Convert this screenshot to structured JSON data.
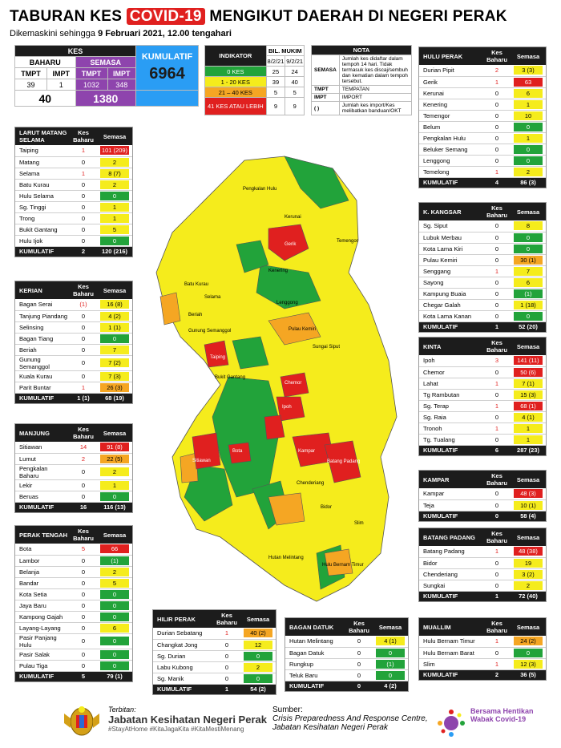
{
  "header": {
    "title_pre": "TABURAN KES",
    "title_covid": "COVID-19",
    "title_post": "MENGIKUT DAERAH DI NEGERI PERAK",
    "subtitle_pre": "Dikemaskini sehingga",
    "subtitle_date": "9 Februari 2021, 12.00 tengahari"
  },
  "colors": {
    "green": "#22a33a",
    "yellow": "#f5ec1c",
    "orange": "#f5a623",
    "red": "#e0201f",
    "purple": "#8e44ad",
    "blue": "#2a9df4"
  },
  "kes": {
    "title": "KES",
    "baharu": "BAHARU",
    "semasa": "SEMASA",
    "kumulatif_label": "KUMULATIF",
    "tmpt": "TMPT",
    "impt": "IMPT",
    "baharu_tmpt": "39",
    "baharu_impt": "1",
    "baharu_total": "40",
    "semasa_tmpt": "1032",
    "semasa_impt": "348",
    "semasa_total": "1380",
    "kumulatif": "6964"
  },
  "indicator": {
    "title": "INDIKATOR",
    "bil_mukim": "BIL. MUKIM",
    "d1": "8/2/21",
    "d2": "9/2/21",
    "rows": [
      {
        "label": "0 KES",
        "v1": "25",
        "v2": "24"
      },
      {
        "label": "1 - 20 KES",
        "v1": "39",
        "v2": "40"
      },
      {
        "label": "21 – 40 KES",
        "v1": "5",
        "v2": "5"
      },
      {
        "label": "41 KES ATAU LEBIH",
        "v1": "9",
        "v2": "9"
      }
    ]
  },
  "nota": {
    "title": "NOTA",
    "rows": [
      {
        "k": "SEMASA",
        "v": "Jumlah kes didaftar dalam tempoh 14 hari. Tidak termasuk kes discaj/sembuh dan kematian dalam tempoh tersebut."
      },
      {
        "k": "TMPT",
        "v": "TEMPATAN"
      },
      {
        "k": "IMPT",
        "v": "IMPORT"
      },
      {
        "k": "( )",
        "v": "Jumlah kes import/Kes melibatkan banduan/OKT"
      }
    ]
  },
  "col": {
    "kes_baharu": "Kes Baharu",
    "semasa": "Semasa",
    "kumulatif": "KUMULATIF"
  },
  "districts": {
    "larut": {
      "name": "LARUT MATANG SELAMA",
      "rows": [
        {
          "n": "Taiping",
          "b": "1",
          "s": "101 (209)",
          "c": "r",
          "br": true
        },
        {
          "n": "Matang",
          "b": "0",
          "s": "2",
          "c": "y"
        },
        {
          "n": "Selama",
          "b": "1",
          "s": "8 (7)",
          "c": "y",
          "br": true
        },
        {
          "n": "Batu Kurau",
          "b": "0",
          "s": "2",
          "c": "y"
        },
        {
          "n": "Hulu Selama",
          "b": "0",
          "s": "0",
          "c": "g"
        },
        {
          "n": "Sg. Tinggi",
          "b": "0",
          "s": "1",
          "c": "y"
        },
        {
          "n": "Trong",
          "b": "0",
          "s": "1",
          "c": "y"
        },
        {
          "n": "Bukit Gantang",
          "b": "0",
          "s": "5",
          "c": "y"
        },
        {
          "n": "Hulu Ijok",
          "b": "0",
          "s": "0",
          "c": "g"
        }
      ],
      "tb": "2",
      "ts": "120 (216)"
    },
    "kerian": {
      "name": "KERIAN",
      "rows": [
        {
          "n": "Bagan Serai",
          "b": "(1)",
          "s": "16 (8)",
          "c": "y",
          "br": true
        },
        {
          "n": "Tanjung Piandang",
          "b": "0",
          "s": "4 (2)",
          "c": "y"
        },
        {
          "n": "Selinsing",
          "b": "0",
          "s": "1 (1)",
          "c": "y"
        },
        {
          "n": "Bagan Tiang",
          "b": "0",
          "s": "0",
          "c": "g"
        },
        {
          "n": "Beriah",
          "b": "0",
          "s": "7",
          "c": "y"
        },
        {
          "n": "Gunung Semanggol",
          "b": "0",
          "s": "7 (2)",
          "c": "y"
        },
        {
          "n": "Kuala Kurau",
          "b": "0",
          "s": "7 (3)",
          "c": "y"
        },
        {
          "n": "Parit Buntar",
          "b": "1",
          "s": "26 (3)",
          "c": "o",
          "br": true
        }
      ],
      "tb": "1 (1)",
      "ts": "68 (19)"
    },
    "manjung": {
      "name": "MANJUNG",
      "rows": [
        {
          "n": "Sitiawan",
          "b": "14",
          "s": "91 (8)",
          "c": "r",
          "br": true
        },
        {
          "n": "Lumut",
          "b": "2",
          "s": "22 (5)",
          "c": "o",
          "br": true
        },
        {
          "n": "Pengkalan Baharu",
          "b": "0",
          "s": "2",
          "c": "y"
        },
        {
          "n": "Lekir",
          "b": "0",
          "s": "1",
          "c": "y"
        },
        {
          "n": "Beruas",
          "b": "0",
          "s": "0",
          "c": "g"
        }
      ],
      "tb": "16",
      "ts": "116 (13)"
    },
    "perak_tengah": {
      "name": "PERAK TENGAH",
      "rows": [
        {
          "n": "Bota",
          "b": "5",
          "s": "66",
          "c": "r",
          "br": true
        },
        {
          "n": "Lambor",
          "b": "0",
          "s": "(1)",
          "c": "g"
        },
        {
          "n": "Belanja",
          "b": "0",
          "s": "2",
          "c": "y"
        },
        {
          "n": "Bandar",
          "b": "0",
          "s": "5",
          "c": "y"
        },
        {
          "n": "Kota Setia",
          "b": "0",
          "s": "0",
          "c": "g"
        },
        {
          "n": "Jaya Baru",
          "b": "0",
          "s": "0",
          "c": "g"
        },
        {
          "n": "Kampong Gajah",
          "b": "0",
          "s": "0",
          "c": "g"
        },
        {
          "n": "Layang-Layang",
          "b": "0",
          "s": "6",
          "c": "y"
        },
        {
          "n": "Pasir Panjang Hulu",
          "b": "0",
          "s": "0",
          "c": "g"
        },
        {
          "n": "Pasir Salak",
          "b": "0",
          "s": "0",
          "c": "g"
        },
        {
          "n": "Pulau Tiga",
          "b": "0",
          "s": "0",
          "c": "g"
        }
      ],
      "tb": "5",
      "ts": "79 (1)"
    },
    "hulu_perak": {
      "name": "HULU PERAK",
      "rows": [
        {
          "n": "Durian Pipit",
          "b": "2",
          "s": "3 (3)",
          "c": "y",
          "br": true
        },
        {
          "n": "Gerik",
          "b": "1",
          "s": "63",
          "c": "r",
          "br": true
        },
        {
          "n": "Kerunai",
          "b": "0",
          "s": "6",
          "c": "y"
        },
        {
          "n": "Kenering",
          "b": "0",
          "s": "1",
          "c": "y"
        },
        {
          "n": "Temengor",
          "b": "0",
          "s": "10",
          "c": "y"
        },
        {
          "n": "Belum",
          "b": "0",
          "s": "0",
          "c": "g"
        },
        {
          "n": "Pengkalan Hulu",
          "b": "0",
          "s": "1",
          "c": "y"
        },
        {
          "n": "Beluker Semang",
          "b": "0",
          "s": "0",
          "c": "g"
        },
        {
          "n": "Lenggong",
          "b": "0",
          "s": "0",
          "c": "g"
        },
        {
          "n": "Temelong",
          "b": "1",
          "s": "2",
          "c": "y",
          "br": true
        }
      ],
      "tb": "4",
      "ts": "86 (3)"
    },
    "kangsar": {
      "name": "K. KANGSAR",
      "rows": [
        {
          "n": "Sg. Siput",
          "b": "0",
          "s": "8",
          "c": "y"
        },
        {
          "n": "Lubuk Merbau",
          "b": "0",
          "s": "0",
          "c": "g"
        },
        {
          "n": "Kota Lama Kiri",
          "b": "0",
          "s": "0",
          "c": "g"
        },
        {
          "n": "Pulau Kemiri",
          "b": "0",
          "s": "30 (1)",
          "c": "o"
        },
        {
          "n": "Senggang",
          "b": "1",
          "s": "7",
          "c": "y",
          "br": true
        },
        {
          "n": "Sayong",
          "b": "0",
          "s": "6",
          "c": "y"
        },
        {
          "n": "Kampung Buaia",
          "b": "0",
          "s": "(1)",
          "c": "g"
        },
        {
          "n": "Chegar Galah",
          "b": "0",
          "s": "1 (18)",
          "c": "y"
        },
        {
          "n": "Kota Lama Kanan",
          "b": "0",
          "s": "0",
          "c": "g"
        }
      ],
      "tb": "1",
      "ts": "52 (20)"
    },
    "kinta": {
      "name": "KINTA",
      "rows": [
        {
          "n": "Ipoh",
          "b": "3",
          "s": "141 (11)",
          "c": "r",
          "br": true
        },
        {
          "n": "Chemor",
          "b": "0",
          "s": "50 (6)",
          "c": "r"
        },
        {
          "n": "Lahat",
          "b": "1",
          "s": "7 (1)",
          "c": "y",
          "br": true
        },
        {
          "n": "Tg Rambutan",
          "b": "0",
          "s": "15 (3)",
          "c": "y"
        },
        {
          "n": "Sg. Terap",
          "b": "1",
          "s": "68 (1)",
          "c": "r",
          "br": true
        },
        {
          "n": "Sg. Raia",
          "b": "0",
          "s": "4 (1)",
          "c": "y"
        },
        {
          "n": "Tronoh",
          "b": "1",
          "s": "1",
          "c": "y",
          "br": true
        },
        {
          "n": "Tg. Tualang",
          "b": "0",
          "s": "1",
          "c": "y"
        }
      ],
      "tb": "6",
      "ts": "287 (23)"
    },
    "kampar": {
      "name": "KAMPAR",
      "rows": [
        {
          "n": "Kampar",
          "b": "0",
          "s": "48 (3)",
          "c": "r"
        },
        {
          "n": "Teja",
          "b": "0",
          "s": "10 (1)",
          "c": "y"
        }
      ],
      "tb": "0",
      "ts": "58 (4)"
    },
    "batang_padang": {
      "name": "BATANG PADANG",
      "rows": [
        {
          "n": "Batang Padang",
          "b": "1",
          "s": "48 (38)",
          "c": "r",
          "br": true
        },
        {
          "n": "Bidor",
          "b": "0",
          "s": "19",
          "c": "y"
        },
        {
          "n": "Chenderiang",
          "b": "0",
          "s": "3 (2)",
          "c": "y"
        },
        {
          "n": "Sungkai",
          "b": "0",
          "s": "2",
          "c": "y"
        }
      ],
      "tb": "1",
      "ts": "72 (40)"
    },
    "muallim": {
      "name": "MUALLIM",
      "rows": [
        {
          "n": "Hulu Bernam Timur",
          "b": "1",
          "s": "24 (2)",
          "c": "o",
          "br": true
        },
        {
          "n": "Hulu Bernam Barat",
          "b": "0",
          "s": "0",
          "c": "g"
        },
        {
          "n": "Slim",
          "b": "1",
          "s": "12 (3)",
          "c": "y",
          "br": true
        }
      ],
      "tb": "2",
      "ts": "36 (5)"
    },
    "hilir_perak": {
      "name": "HILIR PERAK",
      "rows": [
        {
          "n": "Durian Sebatang",
          "b": "1",
          "s": "40 (2)",
          "c": "o",
          "br": true
        },
        {
          "n": "Changkat Jong",
          "b": "0",
          "s": "12",
          "c": "y"
        },
        {
          "n": "Sg. Durian",
          "b": "0",
          "s": "0",
          "c": "g"
        },
        {
          "n": "Labu Kubong",
          "b": "0",
          "s": "2",
          "c": "y"
        },
        {
          "n": "Sg. Manik",
          "b": "0",
          "s": "0",
          "c": "g"
        }
      ],
      "tb": "1",
      "ts": "54 (2)"
    },
    "bagan_datuk": {
      "name": "BAGAN DATUK",
      "rows": [
        {
          "n": "Hutan Melintang",
          "b": "0",
          "s": "4 (1)",
          "c": "y"
        },
        {
          "n": "Bagan Datuk",
          "b": "0",
          "s": "0",
          "c": "g"
        },
        {
          "n": "Rungkup",
          "b": "0",
          "s": "(1)",
          "c": "g"
        },
        {
          "n": "Teluk Baru",
          "b": "0",
          "s": "0",
          "c": "g"
        }
      ],
      "tb": "0",
      "ts": "4 (2)"
    }
  },
  "map_labels": [
    "Pengkalan Hulu",
    "Kerunai",
    "Gerik",
    "Temengor",
    "Kenering",
    "Lenggong",
    "Batu Kurau",
    "Selama",
    "Beriah",
    "Gunung Semanggol",
    "Bukit Gantang",
    "Taiping",
    "Pulau Kemiri",
    "Sungai Siput",
    "Chemor",
    "Ipoh",
    "Kampar",
    "Batang Padang",
    "Sitiawan",
    "Bota",
    "Chenderiang",
    "Bidor",
    "Hutan Melintang",
    "Hulu Bernam Timur",
    "Slim"
  ],
  "footer": {
    "terbitan_label": "Terbitan:",
    "terbitan": "Jabatan Kesihatan Negeri Perak",
    "tags": "#StayAtHome #KitaJagaKita #KitaMestiMenang",
    "sumber_label": "Sumber:",
    "sumber": "Crisis Preparedness And Response Centre, Jabatan Kesihatan Negeri Perak",
    "logo_text": "Bersama Hentikan Wabak Covid-19"
  }
}
